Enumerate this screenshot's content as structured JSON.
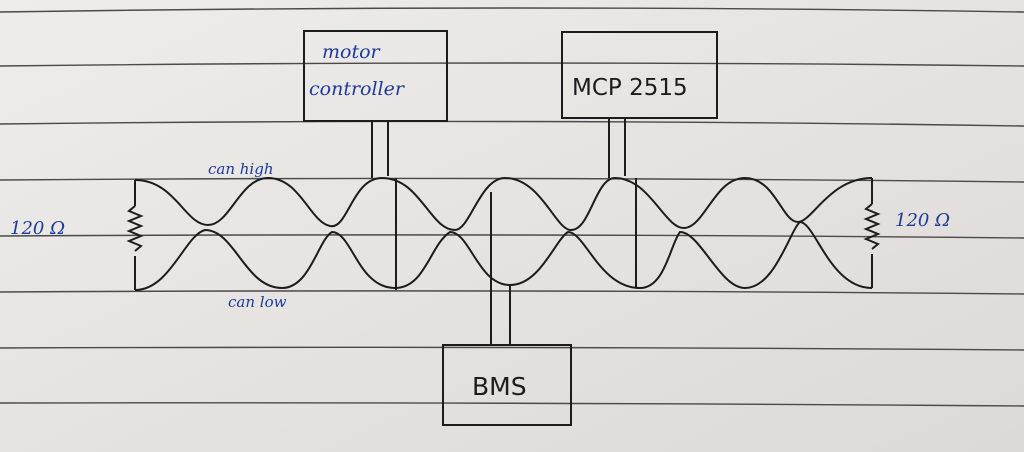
{
  "nodes": {
    "motor_controller": {
      "line1": "motor",
      "line2": "controller"
    },
    "mcp": {
      "label": "MCP 2515"
    },
    "bms": {
      "label": "BMS"
    }
  },
  "labels": {
    "left_resistor": "120 Ω",
    "right_resistor": "120 Ω",
    "can_high": "can high",
    "can_low": "can low"
  },
  "colors": {
    "paper": "#e9e7e4",
    "ruled_line": "#3a3a3a",
    "ink": "#1c1c1c",
    "blue_ink": "#1d3a9a"
  }
}
